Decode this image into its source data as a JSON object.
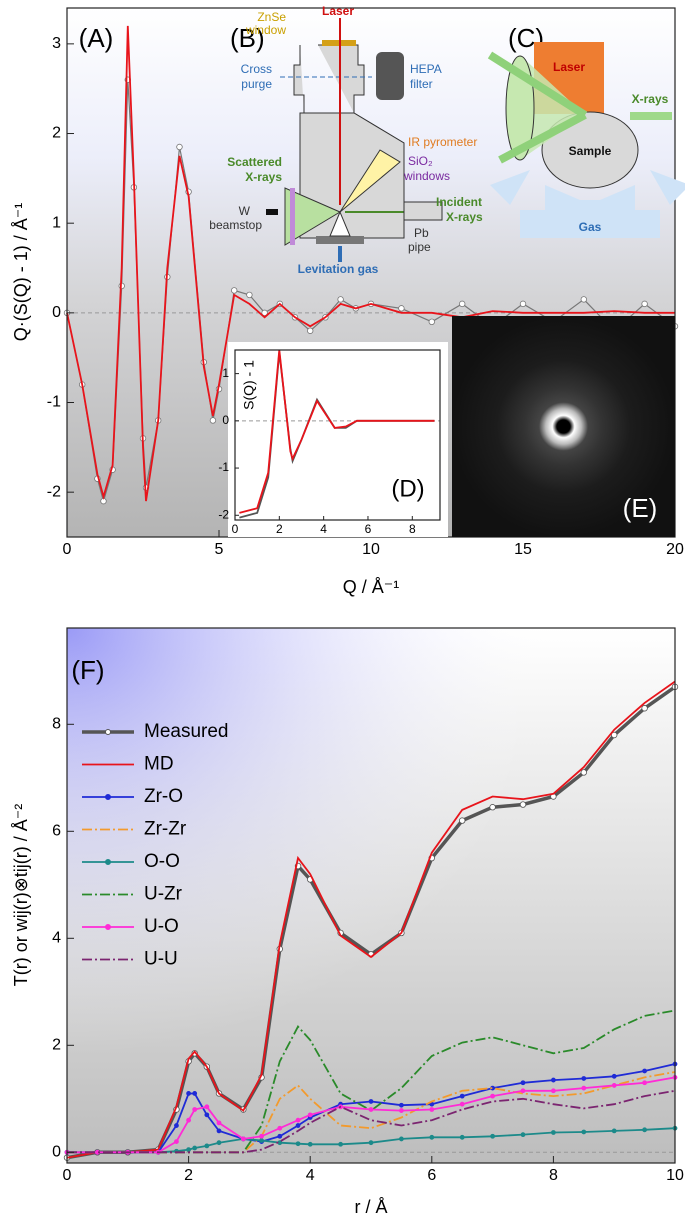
{
  "chart_data": [
    {
      "type": "line",
      "panel_label": "(A)",
      "xlabel": "Q / Å⁻¹",
      "ylabel": "Q·(S(Q) - 1) / Å⁻¹",
      "x": [
        0,
        0.5,
        1,
        1.2,
        1.5,
        1.8,
        2,
        2.2,
        2.5,
        2.6,
        3,
        3.3,
        3.7,
        4,
        4.5,
        4.8,
        5,
        5.5,
        6,
        6.5,
        7,
        7.5,
        8,
        8.5,
        9,
        9.5,
        10,
        11,
        12,
        13,
        14,
        15,
        16,
        17,
        18,
        19,
        20
      ],
      "series": [
        {
          "name": "Measured",
          "color": "#777777",
          "marker": "circle",
          "values": [
            0,
            -0.8,
            -1.85,
            -2.1,
            -1.75,
            0.3,
            2.6,
            1.4,
            -1.4,
            -1.95,
            -1.2,
            0.4,
            1.85,
            1.35,
            -0.55,
            -1.2,
            -0.85,
            0.25,
            0.2,
            0,
            0.1,
            -0.05,
            -0.2,
            -0.05,
            0.15,
            0.05,
            0.1,
            0.05,
            -0.1,
            0.1,
            -0.15,
            0.1,
            -0.1,
            0.15,
            -0.2,
            0.1,
            -0.15
          ]
        },
        {
          "name": "MD",
          "color": "#e8141b",
          "values": [
            0,
            -0.8,
            -1.8,
            -2.05,
            -1.7,
            0.5,
            3.2,
            1.5,
            -1.5,
            -2.1,
            -1.2,
            0.5,
            1.75,
            1.3,
            -0.6,
            -1.15,
            -0.8,
            0.2,
            0.1,
            -0.05,
            0.1,
            -0.05,
            -0.15,
            -0.05,
            0.1,
            0.05,
            0.1,
            0,
            0,
            -0.05,
            0.02,
            0,
            0,
            0,
            0.02,
            0,
            0
          ]
        }
      ],
      "xlim": [
        0,
        20
      ],
      "ylim": [
        -2.5,
        3.4
      ],
      "xticks": [
        0,
        5,
        10,
        15,
        20
      ],
      "yticks": [
        -2,
        -1,
        0,
        1,
        2,
        3
      ],
      "zero_line": true
    },
    {
      "type": "line",
      "panel_label": "(D)",
      "ylabel": "S(Q) - 1",
      "x": [
        0.2,
        1,
        1.5,
        2,
        2.5,
        2.6,
        3,
        3.7,
        4.5,
        5,
        5.5,
        6,
        7,
        8,
        9
      ],
      "series": [
        {
          "name": "Measured",
          "color": "#555555",
          "values": [
            -2.05,
            -1.95,
            -1.2,
            1.45,
            -0.6,
            -0.85,
            -0.4,
            0.45,
            -0.15,
            -0.15,
            0,
            0,
            0,
            0,
            0
          ]
        },
        {
          "name": "MD",
          "color": "#e8141b",
          "values": [
            -1.95,
            -1.85,
            -1.1,
            1.5,
            -0.65,
            -0.8,
            -0.4,
            0.42,
            -0.15,
            -0.12,
            0,
            0,
            0,
            0,
            0
          ]
        }
      ],
      "xlim": [
        0,
        9.25
      ],
      "ylim": [
        -2.1,
        1.5
      ],
      "xticks": [
        0,
        2,
        4,
        6,
        8
      ],
      "yticks": [
        -2,
        -1,
        0,
        1
      ],
      "zero_line": true
    },
    {
      "type": "line",
      "panel_label": "(F)",
      "xlabel": "r / Å",
      "ylabel": "T(r) or wij(r)⊗tij(r) / Å⁻²",
      "legend": "upper left",
      "x": [
        0,
        0.5,
        1,
        1.5,
        1.8,
        2,
        2.1,
        2.3,
        2.5,
        2.9,
        3.2,
        3.5,
        3.8,
        4,
        4.5,
        5,
        5.5,
        6,
        6.5,
        7,
        7.5,
        8,
        8.5,
        9,
        9.5,
        10
      ],
      "series": [
        {
          "name": "Measured",
          "color": "#555555",
          "marker": "circle",
          "values": [
            -0.1,
            0,
            0,
            0.05,
            0.8,
            1.7,
            1.85,
            1.6,
            1.1,
            0.8,
            1.4,
            3.8,
            5.35,
            5.1,
            4.1,
            3.7,
            4.1,
            5.5,
            6.2,
            6.45,
            6.5,
            6.65,
            7.1,
            7.8,
            8.3,
            8.7
          ]
        },
        {
          "name": "MD",
          "color": "#e8141b",
          "values": [
            -0.1,
            0,
            0,
            0.05,
            0.85,
            1.75,
            1.88,
            1.6,
            1.1,
            0.78,
            1.45,
            3.9,
            5.5,
            5.2,
            4.05,
            3.65,
            4.1,
            5.6,
            6.4,
            6.65,
            6.6,
            6.7,
            7.2,
            7.9,
            8.4,
            8.8
          ]
        },
        {
          "name": "Zr-O",
          "color": "#1f2bd6",
          "marker": "dot",
          "values": [
            0,
            0,
            0,
            0,
            0.5,
            1.1,
            1.1,
            0.7,
            0.4,
            0.25,
            0.2,
            0.3,
            0.5,
            0.65,
            0.9,
            0.95,
            0.88,
            0.9,
            1.05,
            1.2,
            1.3,
            1.35,
            1.38,
            1.42,
            1.52,
            1.65
          ]
        },
        {
          "name": "Zr-Zr",
          "color": "#f39a2c",
          "style": "dash",
          "values": [
            0,
            0,
            0,
            0,
            0,
            0,
            0,
            0,
            0,
            0,
            0.3,
            1,
            1.25,
            1,
            0.5,
            0.45,
            0.65,
            0.95,
            1.15,
            1.2,
            1.1,
            1.05,
            1.1,
            1.25,
            1.4,
            1.5
          ]
        },
        {
          "name": "O-O",
          "color": "#1c8a8a",
          "marker": "dot",
          "values": [
            0,
            0,
            0,
            0,
            0.02,
            0.05,
            0.08,
            0.12,
            0.18,
            0.25,
            0.22,
            0.18,
            0.16,
            0.15,
            0.15,
            0.18,
            0.25,
            0.28,
            0.28,
            0.3,
            0.33,
            0.37,
            0.38,
            0.4,
            0.42,
            0.45
          ]
        },
        {
          "name": "U-Zr",
          "color": "#2a8a2a",
          "style": "dash",
          "values": [
            0,
            0,
            0,
            0,
            0,
            0,
            0,
            0,
            0,
            0,
            0.5,
            1.7,
            2.35,
            2.1,
            1.1,
            0.78,
            1.2,
            1.8,
            2.05,
            2.15,
            2,
            1.85,
            1.95,
            2.3,
            2.55,
            2.65
          ]
        },
        {
          "name": "U-O",
          "color": "#ff2bd6",
          "marker": "dot",
          "values": [
            0,
            0,
            0,
            0,
            0.2,
            0.6,
            0.8,
            0.85,
            0.55,
            0.25,
            0.3,
            0.45,
            0.6,
            0.7,
            0.85,
            0.8,
            0.78,
            0.8,
            0.9,
            1.05,
            1.15,
            1.15,
            1.2,
            1.25,
            1.3,
            1.4
          ]
        },
        {
          "name": "U-U",
          "color": "#7b2470",
          "style": "dash",
          "values": [
            0,
            0,
            0,
            0,
            0,
            0,
            0,
            0,
            0,
            0,
            0.05,
            0.2,
            0.4,
            0.55,
            0.85,
            0.6,
            0.5,
            0.6,
            0.8,
            0.95,
            1,
            0.9,
            0.82,
            0.9,
            1.05,
            1.15
          ]
        }
      ],
      "xlim": [
        0,
        10
      ],
      "ylim": [
        -0.2,
        9.8
      ],
      "xticks": [
        0,
        2,
        4,
        6,
        8,
        10
      ],
      "yticks": [
        0,
        2,
        4,
        6,
        8
      ],
      "zero_line": true
    }
  ],
  "diagrams": {
    "B": {
      "label": "(B)",
      "laser": "Laser",
      "znse": [
        "ZnSe",
        "window"
      ],
      "purge": [
        "Cross",
        "purge"
      ],
      "hepa": [
        "HEPA",
        "filter"
      ],
      "pyrometer": "IR pyrometer",
      "sio2": [
        "SiO₂",
        "windows"
      ],
      "scattered": [
        "Scattered",
        "X-rays"
      ],
      "beamstop": [
        "W",
        "beamstop"
      ],
      "incident": [
        "Incident",
        "X-rays"
      ],
      "pb": [
        "Pb",
        "pipe"
      ],
      "gas": "Levitation gas"
    },
    "C": {
      "label": "(C)",
      "laser": "Laser",
      "xrays": "X-rays",
      "sample": "Sample",
      "gas": "Gas"
    },
    "E": {
      "label": "(E)"
    }
  }
}
